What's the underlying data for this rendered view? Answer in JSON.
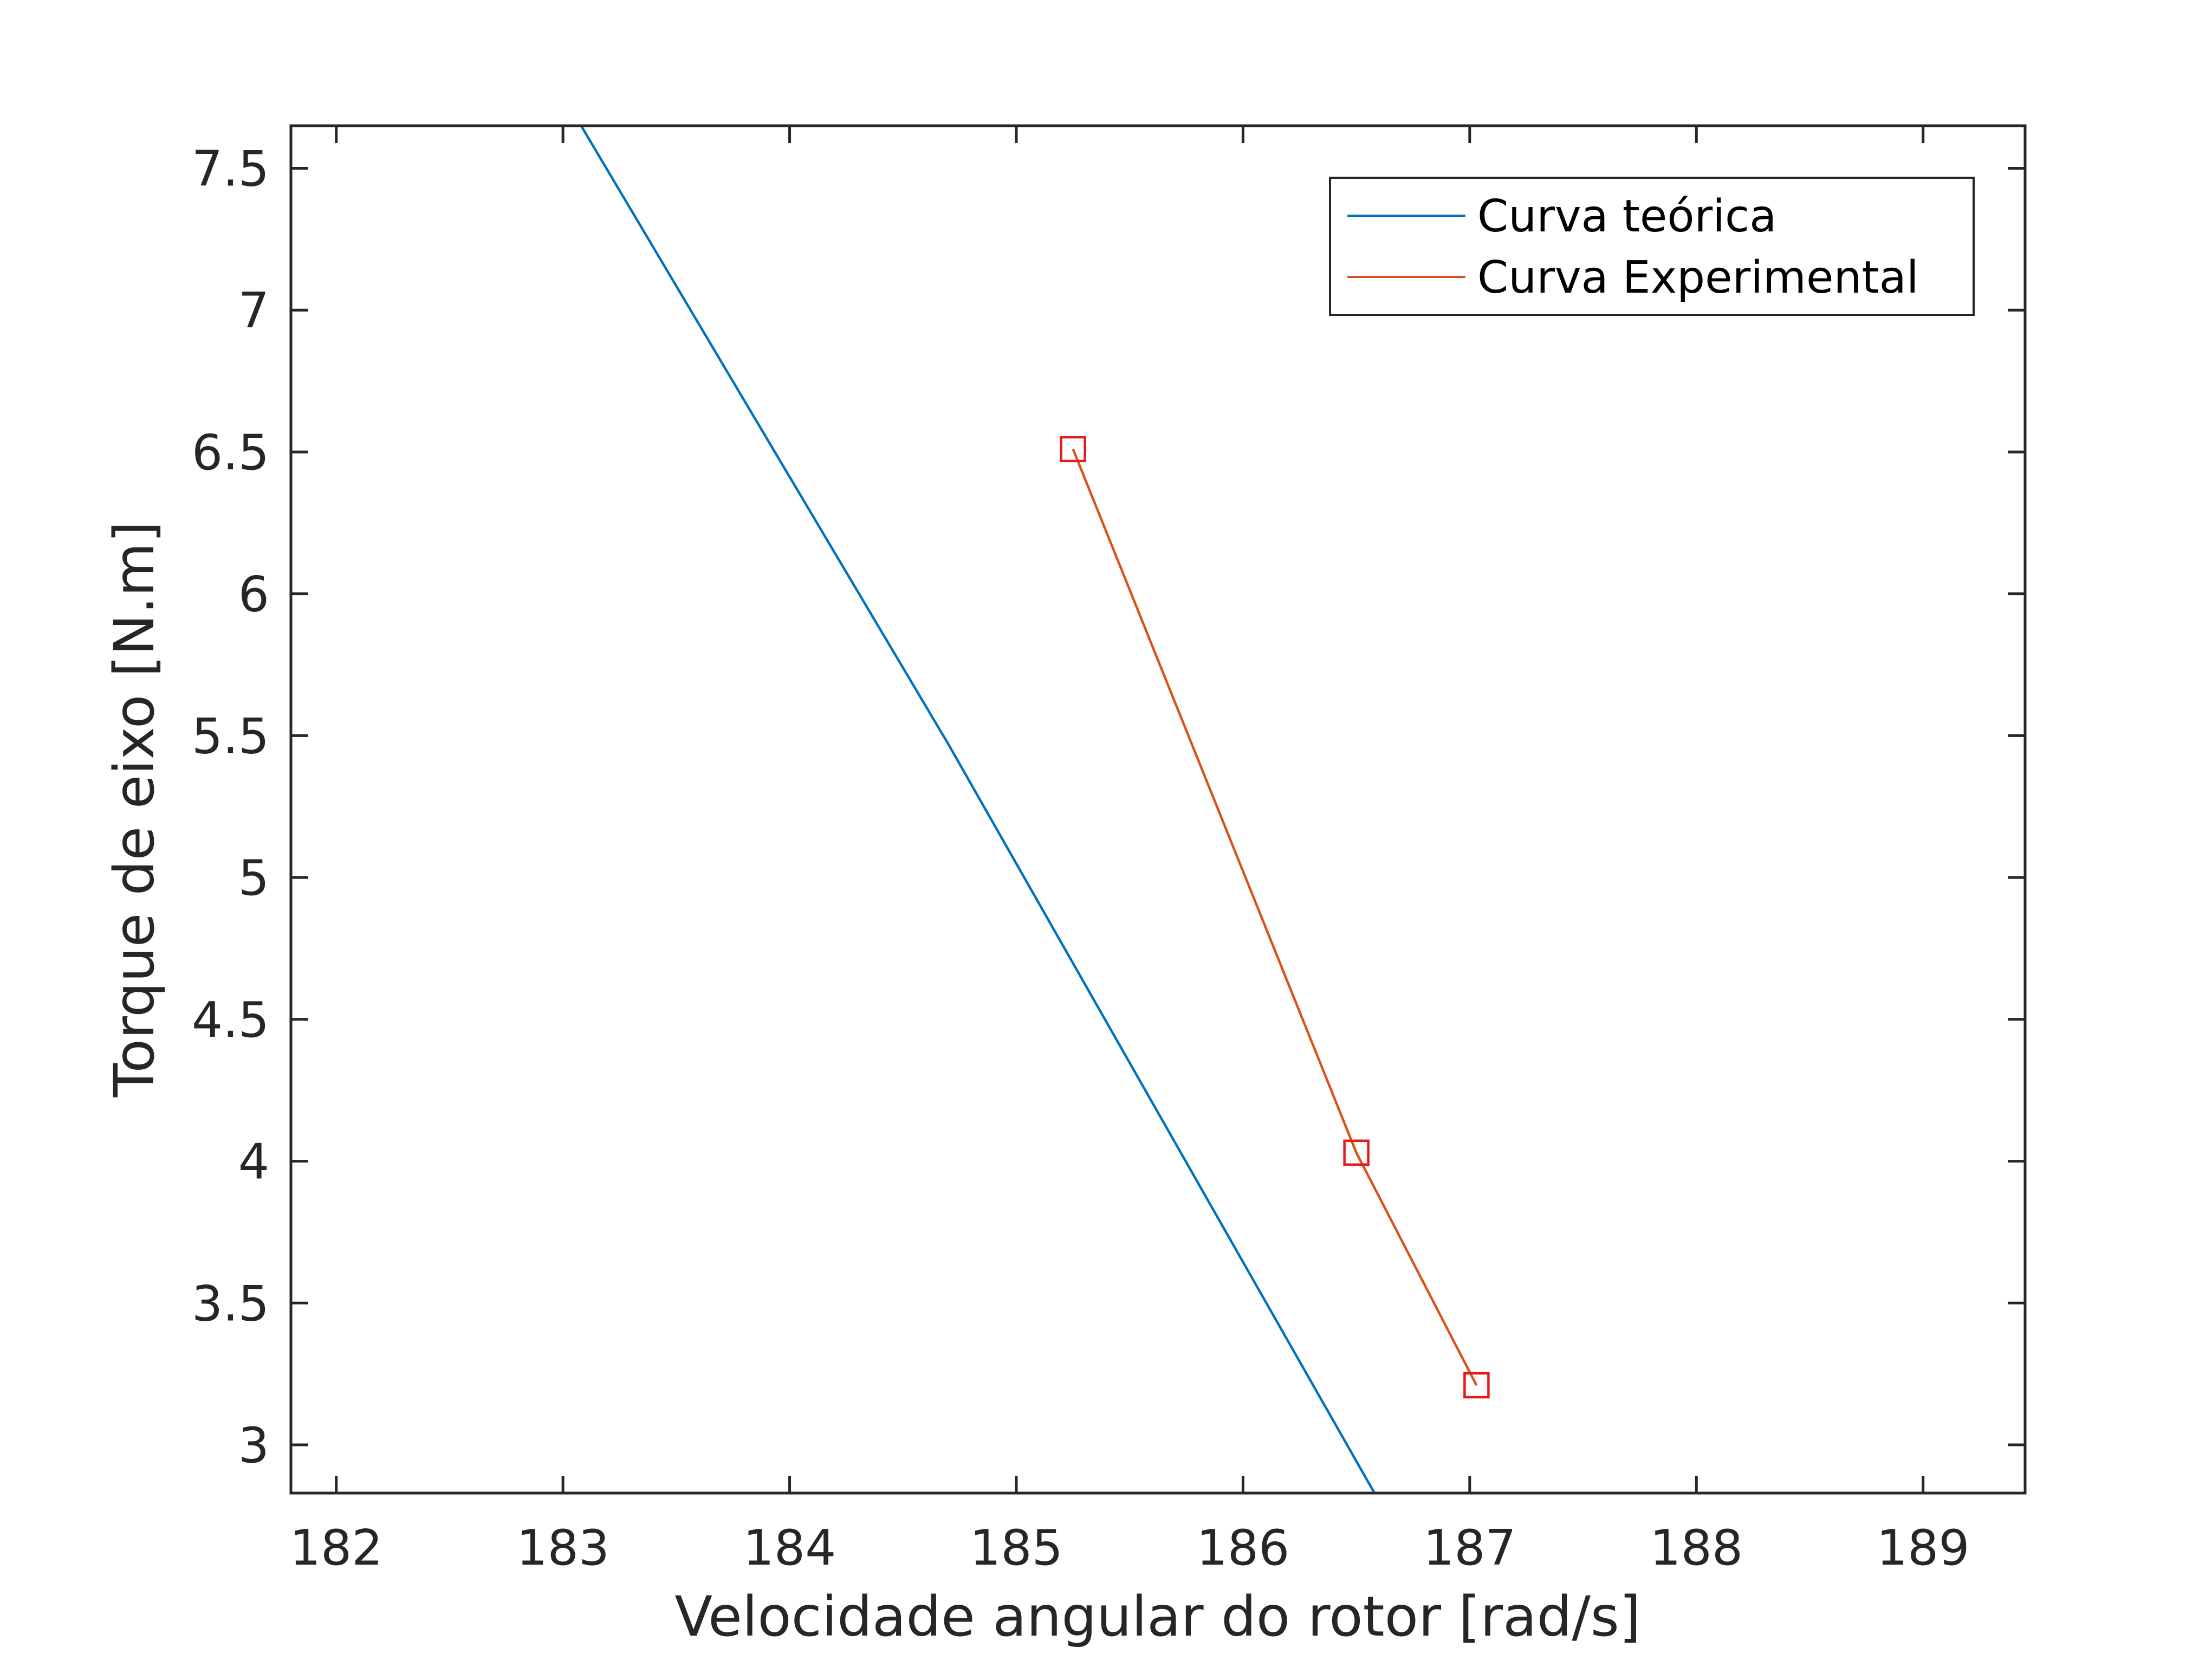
{
  "chart_data": {
    "type": "line",
    "title": "",
    "xlabel": "Velocidade angular do rotor [rad/s]",
    "ylabel": "Torque de eixo [N.m]",
    "xlim": [
      181.8,
      189.45
    ],
    "ylim": [
      2.83,
      7.65
    ],
    "xticks": [
      "182",
      "183",
      "184",
      "185",
      "186",
      "187",
      "188",
      "189"
    ],
    "yticks": [
      "3",
      "3.5",
      "4",
      "4.5",
      "5",
      "5.5",
      "6",
      "6.5",
      "7",
      "7.5"
    ],
    "grid": false,
    "legend_position": "top-right",
    "series": [
      {
        "name": "Curva teórica",
        "color": "#0072BD",
        "marker": "none",
        "x": [
          183.08,
          184.7,
          186.58
        ],
        "y": [
          7.65,
          5.47,
          2.83
        ]
      },
      {
        "name": "Curva Experimental",
        "color": "#D95319",
        "marker": "square",
        "marker_color": "#E41A1C",
        "x": [
          185.25,
          186.5,
          187.03
        ],
        "y": [
          6.51,
          4.03,
          3.21
        ]
      }
    ]
  }
}
